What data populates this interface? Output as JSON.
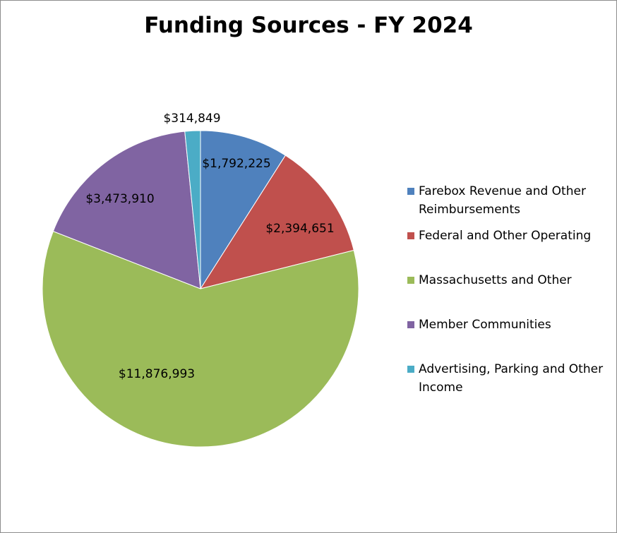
{
  "chart_data": {
    "type": "pie",
    "title": "Funding Sources - FY 2024",
    "slices": [
      {
        "name": "Farebox Revenue and Other Reimbursements",
        "value": 1792225,
        "label": "$1,792,225",
        "color": "#4F81BD"
      },
      {
        "name": "Federal and Other Operating",
        "value": 2394651,
        "label": "$2,394,651",
        "color": "#C0504D"
      },
      {
        "name": "Massachusetts and Other",
        "value": 11876993,
        "label": "$11,876,993",
        "color": "#9BBB59"
      },
      {
        "name": "Member Communities",
        "value": 3473910,
        "label": "$3,473,910",
        "color": "#8064A2"
      },
      {
        "name": "Advertising, Parking and Other Income",
        "value": 314849,
        "label": "$314,849",
        "color": "#4BACC6"
      }
    ],
    "legend_position": "right"
  }
}
